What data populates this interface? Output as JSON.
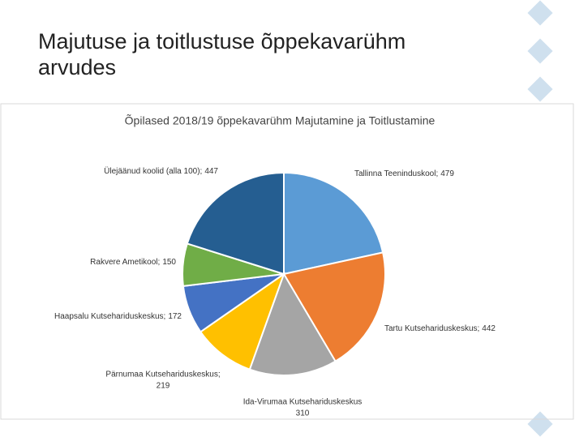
{
  "slide_title": [
    "Majutuse ja toitlustuse õppekavarühm",
    "arvudes"
  ],
  "chart_data": {
    "type": "pie",
    "title": "Õpilased 2018/19 õppekavarühm Majutamine ja Toitlustamine",
    "categories": [
      "Tallinna Teeninduskool;",
      "Tartu Kutsehariduskeskus;",
      "Ida-Virumaa Kutsehariduskeskus",
      "Pärnumaa Kutsehariduskeskus;",
      "Haapsalu Kutsehariduskeskus;",
      "Rakvere Ametikool;",
      "Ülejäänud koolid (alla 100);"
    ],
    "values": [
      479,
      442,
      310,
      219,
      172,
      150,
      447
    ],
    "colors": [
      "#5b9bd5",
      "#ed7d31",
      "#a5a5a5",
      "#ffc000",
      "#4472c4",
      "#70ad47",
      "#255e91"
    ]
  }
}
